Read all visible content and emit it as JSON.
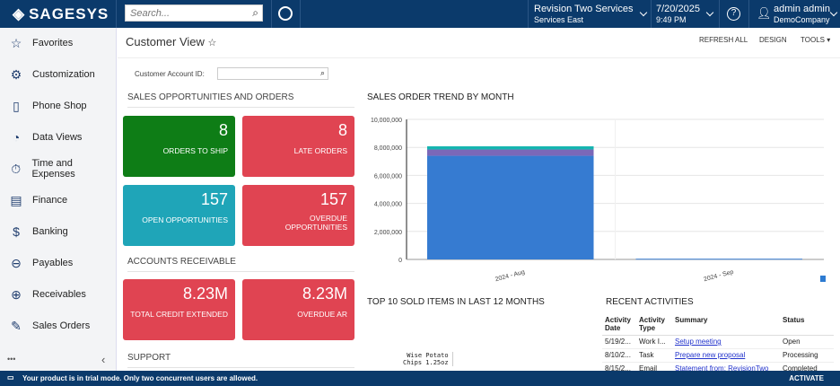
{
  "header": {
    "logo": "SAGESYS",
    "search_placeholder": "Search...",
    "company": "Revision Two Services",
    "branch": "Services East",
    "date": "7/20/2025",
    "time": "9:49 PM",
    "user": "admin admin",
    "user_company": "DemoCompany"
  },
  "sidebar": {
    "items": [
      {
        "label": "Favorites",
        "icon": "☆"
      },
      {
        "label": "Customization",
        "icon": "⚙"
      },
      {
        "label": "Phone Shop",
        "icon": "▯"
      },
      {
        "label": "Data Views",
        "icon": "◔"
      },
      {
        "label": "Time and Expenses",
        "icon": "⏱"
      },
      {
        "label": "Finance",
        "icon": "▤"
      },
      {
        "label": "Banking",
        "icon": "$"
      },
      {
        "label": "Payables",
        "icon": "⊖"
      },
      {
        "label": "Receivables",
        "icon": "⊕"
      },
      {
        "label": "Sales Orders",
        "icon": "✎"
      }
    ],
    "more": "•••",
    "collapse": "‹"
  },
  "page": {
    "title": "Customer View",
    "refresh": "REFRESH ALL",
    "design": "DESIGN",
    "tools": "TOOLS ▾",
    "account_label": "Customer Account ID:"
  },
  "sections": {
    "sales": "SALES OPPORTUNITIES AND ORDERS",
    "ar": "ACCOUNTS RECEIVABLE",
    "support": "SUPPORT"
  },
  "tiles": [
    {
      "value": "8",
      "label": "ORDERS TO SHIP",
      "color": "#0e7d16"
    },
    {
      "value": "8",
      "label": "LATE ORDERS",
      "color": "#e04452"
    },
    {
      "value": "157",
      "label": "OPEN OPPORTUNITIES",
      "color": "#1fa5b8"
    },
    {
      "value": "157",
      "label": "OVERDUE OPPORTUNITIES",
      "color": "#e04452"
    },
    {
      "value": "8.23M",
      "label": "TOTAL CREDIT EXTENDED",
      "color": "#e04452"
    },
    {
      "value": "8.23M",
      "label": "OVERDUE AR",
      "color": "#e04452"
    }
  ],
  "chart_data": {
    "type": "bar",
    "title": "SALES ORDER TREND BY MONTH",
    "stacked": true,
    "categories": [
      "2024 - Aug",
      "2024 - Sep"
    ],
    "series": [
      {
        "values": [
          7400000,
          50000
        ],
        "color": "#367bd1"
      },
      {
        "values": [
          450000,
          0
        ],
        "color": "#7b68b8"
      },
      {
        "values": [
          230000,
          0
        ],
        "color": "#16b5b0"
      }
    ],
    "ylim": [
      0,
      10000000
    ],
    "yticks": [
      "0",
      "2,000,000",
      "4,000,000",
      "6,000,000",
      "8,000,000",
      "10,000,000"
    ],
    "grid": true
  },
  "top10": {
    "title": "TOP 10 SOLD ITEMS IN LAST 12 MONTHS",
    "label1": "Wise Potato",
    "label2": "Chips 1.25oz"
  },
  "activities": {
    "title": "RECENT ACTIVITIES",
    "headers": [
      "Activity Date",
      "Activity Type",
      "Summary",
      "Status"
    ],
    "rows": [
      [
        "5/19/2...",
        "Work I...",
        "Setup meeting",
        "Open"
      ],
      [
        "8/10/2...",
        "Task",
        "Prepare new proposal",
        "Processing"
      ],
      [
        "8/15/2...",
        "Email",
        "Statement from: RevisionTwo",
        "Completed"
      ]
    ]
  },
  "footer": {
    "message": "Your product is in trial mode. Only two concurrent users are allowed.",
    "activate": "ACTIVATE"
  }
}
